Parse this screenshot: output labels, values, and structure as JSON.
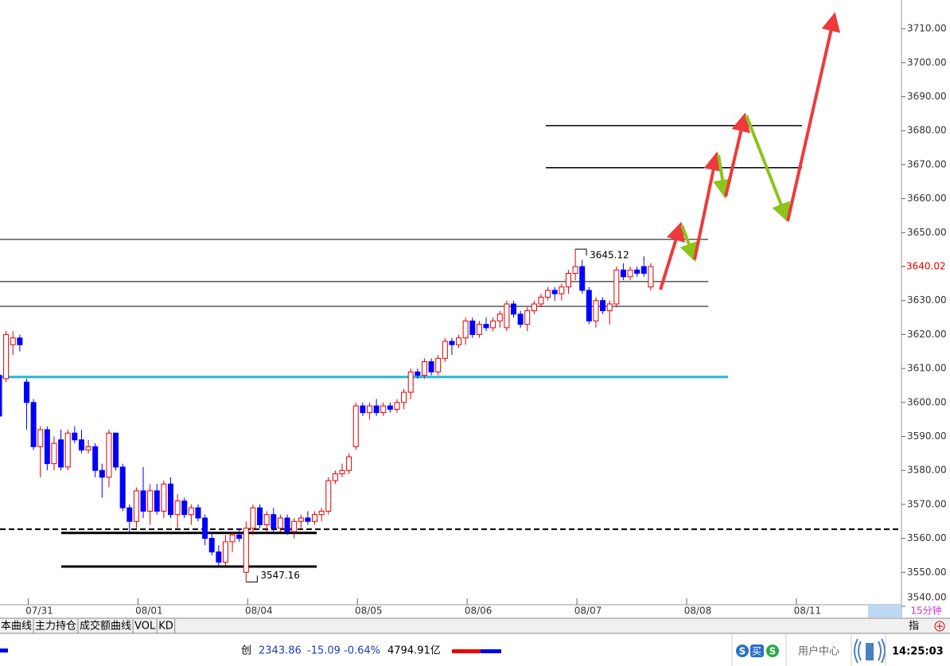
{
  "chart_data": {
    "type": "candlestick",
    "categories": [
      null,
      null,
      null,
      null,
      "07/31",
      null,
      null,
      null,
      null,
      null,
      null,
      null,
      null,
      null,
      null,
      null,
      null,
      null,
      null,
      null,
      "08/01",
      null,
      null,
      null,
      null,
      null,
      null,
      null,
      null,
      null,
      null,
      null,
      null,
      null,
      null,
      null,
      "08/04",
      null,
      null,
      null,
      null,
      null,
      null,
      null,
      null,
      null,
      null,
      null,
      null,
      null,
      null,
      null,
      "08/05",
      null,
      null,
      null,
      null,
      null,
      null,
      null,
      null,
      null,
      null,
      null,
      null,
      null,
      null,
      null,
      "08/06",
      null,
      null,
      null,
      null,
      null,
      null,
      null,
      null,
      null,
      null,
      null,
      null,
      null,
      null,
      null,
      "08/07",
      null,
      null,
      null,
      null,
      null,
      null,
      null,
      null,
      null,
      null,
      null,
      null,
      null,
      null,
      null,
      "08/08",
      null,
      null,
      null,
      null,
      null,
      null,
      null,
      null,
      null,
      null,
      null,
      null,
      null,
      null,
      null,
      "08/11",
      null,
      null,
      null,
      null,
      null,
      null,
      null,
      null,
      null,
      null,
      null,
      null,
      null,
      null
    ],
    "open": [
      3608,
      3607,
      3617,
      3619,
      3606,
      3600,
      3587,
      3592,
      3582,
      3589,
      3581,
      3591,
      3589,
      3586,
      3587,
      3580,
      3578,
      3591,
      3581,
      3569,
      3565,
      3574,
      3568,
      3574,
      3568,
      3576,
      3567,
      3571,
      3567,
      3569,
      3566,
      3560,
      3556,
      3553,
      3559,
      3561,
      3550,
      3563,
      3569,
      3564,
      3567,
      3563,
      3566,
      3562,
      3565,
      3566,
      3565,
      3567,
      3568,
      3577,
      3579,
      3580,
      3587,
      3599,
      3597,
      3599,
      3597,
      3599,
      3598,
      3600,
      3603,
      3609,
      3608,
      3612,
      3609,
      3613,
      3618,
      3617,
      3619,
      3624,
      3620,
      3623,
      3622,
      3624,
      3622,
      3629,
      3626,
      3623,
      3627,
      3629,
      3631,
      3633,
      3632,
      3634,
      3638,
      3640,
      3633,
      3624,
      3630,
      3627,
      3629,
      3639,
      3637,
      3639,
      3640,
      3634,
      null,
      null,
      null,
      null,
      null,
      null,
      null,
      null,
      null,
      null,
      null,
      null,
      null,
      null,
      null,
      null,
      null,
      null,
      null,
      null,
      null,
      null,
      null,
      null,
      null,
      null,
      null,
      null,
      null,
      null,
      null,
      null,
      null,
      null,
      null
    ],
    "high": [
      3610,
      3621,
      3621,
      3620,
      3607,
      3601,
      3593,
      3593,
      3590,
      3592,
      3592,
      3593,
      3592,
      3589,
      3588,
      3582,
      3592,
      3591,
      3582,
      3570,
      3575,
      3581,
      3576,
      3576,
      3577,
      3578,
      3573,
      3572,
      3570,
      3570,
      3567,
      3562,
      3558,
      3561,
      3562,
      3563,
      3565,
      3570,
      3570,
      3568,
      3569,
      3567,
      3567,
      3566,
      3567,
      3568,
      3568,
      3569,
      3578,
      3580,
      3582,
      3585,
      3600,
      3600,
      3600,
      3601,
      3600,
      3600,
      3601,
      3604,
      3610,
      3610,
      3613,
      3613,
      3614,
      3619,
      3619,
      3620,
      3625,
      3625,
      3624,
      3625,
      3625,
      3627,
      3630,
      3630,
      3627,
      3628,
      3630,
      3632,
      3634,
      3634,
      3635,
      3639,
      3645.12,
      3642,
      3634,
      3631,
      3631,
      3630,
      3640,
      3641,
      3640,
      3640,
      3643,
      3641,
      null,
      null,
      null,
      null,
      null,
      null,
      null,
      null,
      null,
      null,
      null,
      null,
      null,
      null,
      null,
      null,
      null,
      null,
      null,
      null,
      null,
      null,
      null,
      null,
      null,
      null,
      null,
      null,
      null,
      null,
      null,
      null,
      null,
      null,
      null
    ],
    "low": [
      3594,
      3606,
      3614,
      3615,
      3592,
      3586,
      3578,
      3580,
      3580,
      3580,
      3580,
      3588,
      3585,
      3585,
      3578,
      3572,
      3575,
      3580,
      3568,
      3562,
      3563,
      3566,
      3564,
      3567,
      3566,
      3566,
      3563,
      3566,
      3564,
      3565,
      3558,
      3555,
      3552,
      3552,
      3556,
      3559,
      3547.16,
      3561,
      3563,
      3562,
      3562,
      3562,
      3561,
      3560,
      3563,
      3564,
      3564,
      3565,
      3567,
      3576,
      3578,
      3579,
      3586,
      3596,
      3595,
      3596,
      3596,
      3597,
      3597,
      3598,
      3601,
      3607,
      3607,
      3608,
      3608,
      3612,
      3614,
      3616,
      3617,
      3619,
      3619,
      3621,
      3621,
      3622,
      3621,
      3625,
      3622,
      3621,
      3626,
      3628,
      3630,
      3630,
      3630,
      3632,
      3636,
      3632,
      3623,
      3622,
      3626,
      3623,
      3628,
      3636,
      3636,
      3637,
      3637,
      3633,
      null,
      null,
      null,
      null,
      null,
      null,
      null,
      null,
      null,
      null,
      null,
      null,
      null,
      null,
      null,
      null,
      null,
      null,
      null,
      null,
      null,
      null,
      null,
      null,
      null,
      null,
      null,
      null,
      null,
      null,
      null,
      null,
      null,
      null,
      null
    ],
    "close": [
      3596,
      3620,
      3619,
      3617,
      3600,
      3587,
      3592,
      3582,
      3588,
      3581,
      3591,
      3589,
      3586,
      3587,
      3580,
      3578,
      3591,
      3581,
      3569,
      3565,
      3574,
      3568,
      3574,
      3568,
      3576,
      3567,
      3571,
      3567,
      3569,
      3566,
      3560,
      3556,
      3553,
      3559,
      3561,
      3560,
      3563,
      3569,
      3564,
      3567,
      3563,
      3566,
      3562,
      3565,
      3566,
      3565,
      3567,
      3568,
      3577,
      3579,
      3580,
      3584,
      3599,
      3597,
      3599,
      3597,
      3599,
      3598,
      3600,
      3603,
      3609,
      3608,
      3612,
      3609,
      3613,
      3618,
      3617,
      3619,
      3624,
      3620,
      3623,
      3622,
      3624,
      3626,
      3629,
      3626,
      3623,
      3627,
      3629,
      3631,
      3633,
      3632,
      3634,
      3638,
      3640,
      3633,
      3624,
      3630,
      3627,
      3629,
      3639,
      3637,
      3639,
      3638,
      3638,
      3640.02,
      null,
      null,
      null,
      null,
      null,
      null,
      null,
      null,
      null,
      null,
      null,
      null,
      null,
      null,
      null,
      null,
      null,
      null,
      null,
      null,
      null,
      null,
      null,
      null,
      null,
      null,
      null,
      null,
      null,
      null,
      null,
      null,
      null,
      null,
      null
    ],
    "up_color": "#e00000",
    "down_color": "#0000ff",
    "ylim": [
      3540,
      3718
    ],
    "yticks": [
      {
        "value": 3540,
        "label": "3540.00"
      },
      {
        "value": 3550,
        "label": "3550.00"
      },
      {
        "value": 3560,
        "label": "3560.00"
      },
      {
        "value": 3570,
        "label": "3570.00"
      },
      {
        "value": 3580,
        "label": "3580.00"
      },
      {
        "value": 3590,
        "label": "3590.00"
      },
      {
        "value": 3600,
        "label": "3600.00"
      },
      {
        "value": 3610,
        "label": "3610.00"
      },
      {
        "value": 3620,
        "label": "3620.00"
      },
      {
        "value": 3630,
        "label": "3630.00"
      },
      {
        "value": 3650,
        "label": "3650.00"
      },
      {
        "value": 3660,
        "label": "3660.00"
      },
      {
        "value": 3670,
        "label": "3670.00"
      },
      {
        "value": 3680,
        "label": "3680.00"
      },
      {
        "value": 3690,
        "label": "3690.00"
      },
      {
        "value": 3700,
        "label": "3700.00"
      },
      {
        "value": 3710,
        "label": "3710.00"
      }
    ],
    "last_price": {
      "value": 3640.02,
      "label": "3640.02",
      "color": "#e00000"
    },
    "annotations": [
      {
        "value": 3645.12,
        "label": "3645.12"
      },
      {
        "value": 3547.16,
        "label": "3547.16"
      }
    ],
    "levels": [
      {
        "value": 3648,
        "color": "#000000"
      },
      {
        "value": 3635.6,
        "color": "#000000"
      },
      {
        "value": 3628.3,
        "color": "#000000"
      },
      {
        "value": 3681.5,
        "color": "#000000"
      },
      {
        "value": 3669.1,
        "color": "#000000"
      },
      {
        "value": 3607.5,
        "color": "#22b8d8"
      },
      {
        "value": 3562.7,
        "color": "#000000"
      },
      {
        "value": 3561.6,
        "color": "#000000"
      },
      {
        "value": 3551.7,
        "color": "#000000"
      }
    ],
    "period": "15分钟"
  },
  "tabs": [
    "本曲线",
    "主力持仓",
    "成交额曲线",
    "VOL",
    "KD"
  ],
  "index_button": "指",
  "status": {
    "name": "创",
    "price": "2343.86",
    "change": "-15.09",
    "pct": "-0.64%",
    "amount": "4794.91亿",
    "buy": "买",
    "user_center": "用户中心",
    "time": "14:25:03"
  }
}
